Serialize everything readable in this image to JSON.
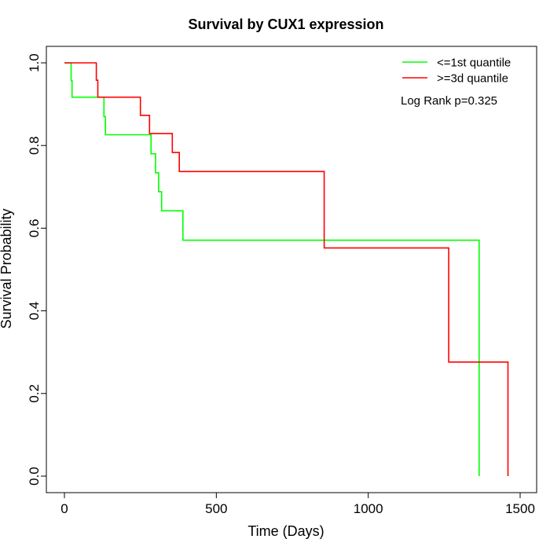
{
  "chart_data": {
    "type": "line",
    "subtype": "kaplan-meier",
    "title": "Survival by CUX1 expression",
    "xlabel": "Time (Days)",
    "ylabel": "Survival Probability",
    "xlim": [
      0,
      1500
    ],
    "ylim": [
      0,
      1
    ],
    "xticks": [
      0,
      500,
      1000,
      1500
    ],
    "yticks": [
      0.0,
      0.2,
      0.4,
      0.6,
      0.8,
      1.0
    ],
    "xtick_labels": [
      "0",
      "500",
      "1000",
      "1500"
    ],
    "ytick_labels": [
      "0.0",
      "0.2",
      "0.4",
      "0.6",
      "0.8",
      "1.0"
    ],
    "grid": false,
    "legend_position": "top-right",
    "annotation": "Log Rank p=0.325",
    "series": [
      {
        "name": "<=1st quantile",
        "color": "#00ff00",
        "x": [
          0,
          22,
          25,
          130,
          135,
          285,
          300,
          310,
          320,
          330,
          390,
          1365,
          1365
        ],
        "y": [
          1.0,
          0.957,
          0.917,
          0.87,
          0.826,
          0.78,
          0.734,
          0.688,
          0.642,
          0.642,
          0.571,
          0.571,
          0.0
        ]
      },
      {
        "name": ">=3d quantile",
        "color": "#ff0000",
        "x": [
          0,
          105,
          110,
          250,
          280,
          355,
          378,
          855,
          1265,
          1460,
          1460
        ],
        "y": [
          1.0,
          0.958,
          0.917,
          0.873,
          0.829,
          0.783,
          0.737,
          0.552,
          0.276,
          0.276,
          0.0
        ]
      }
    ]
  }
}
